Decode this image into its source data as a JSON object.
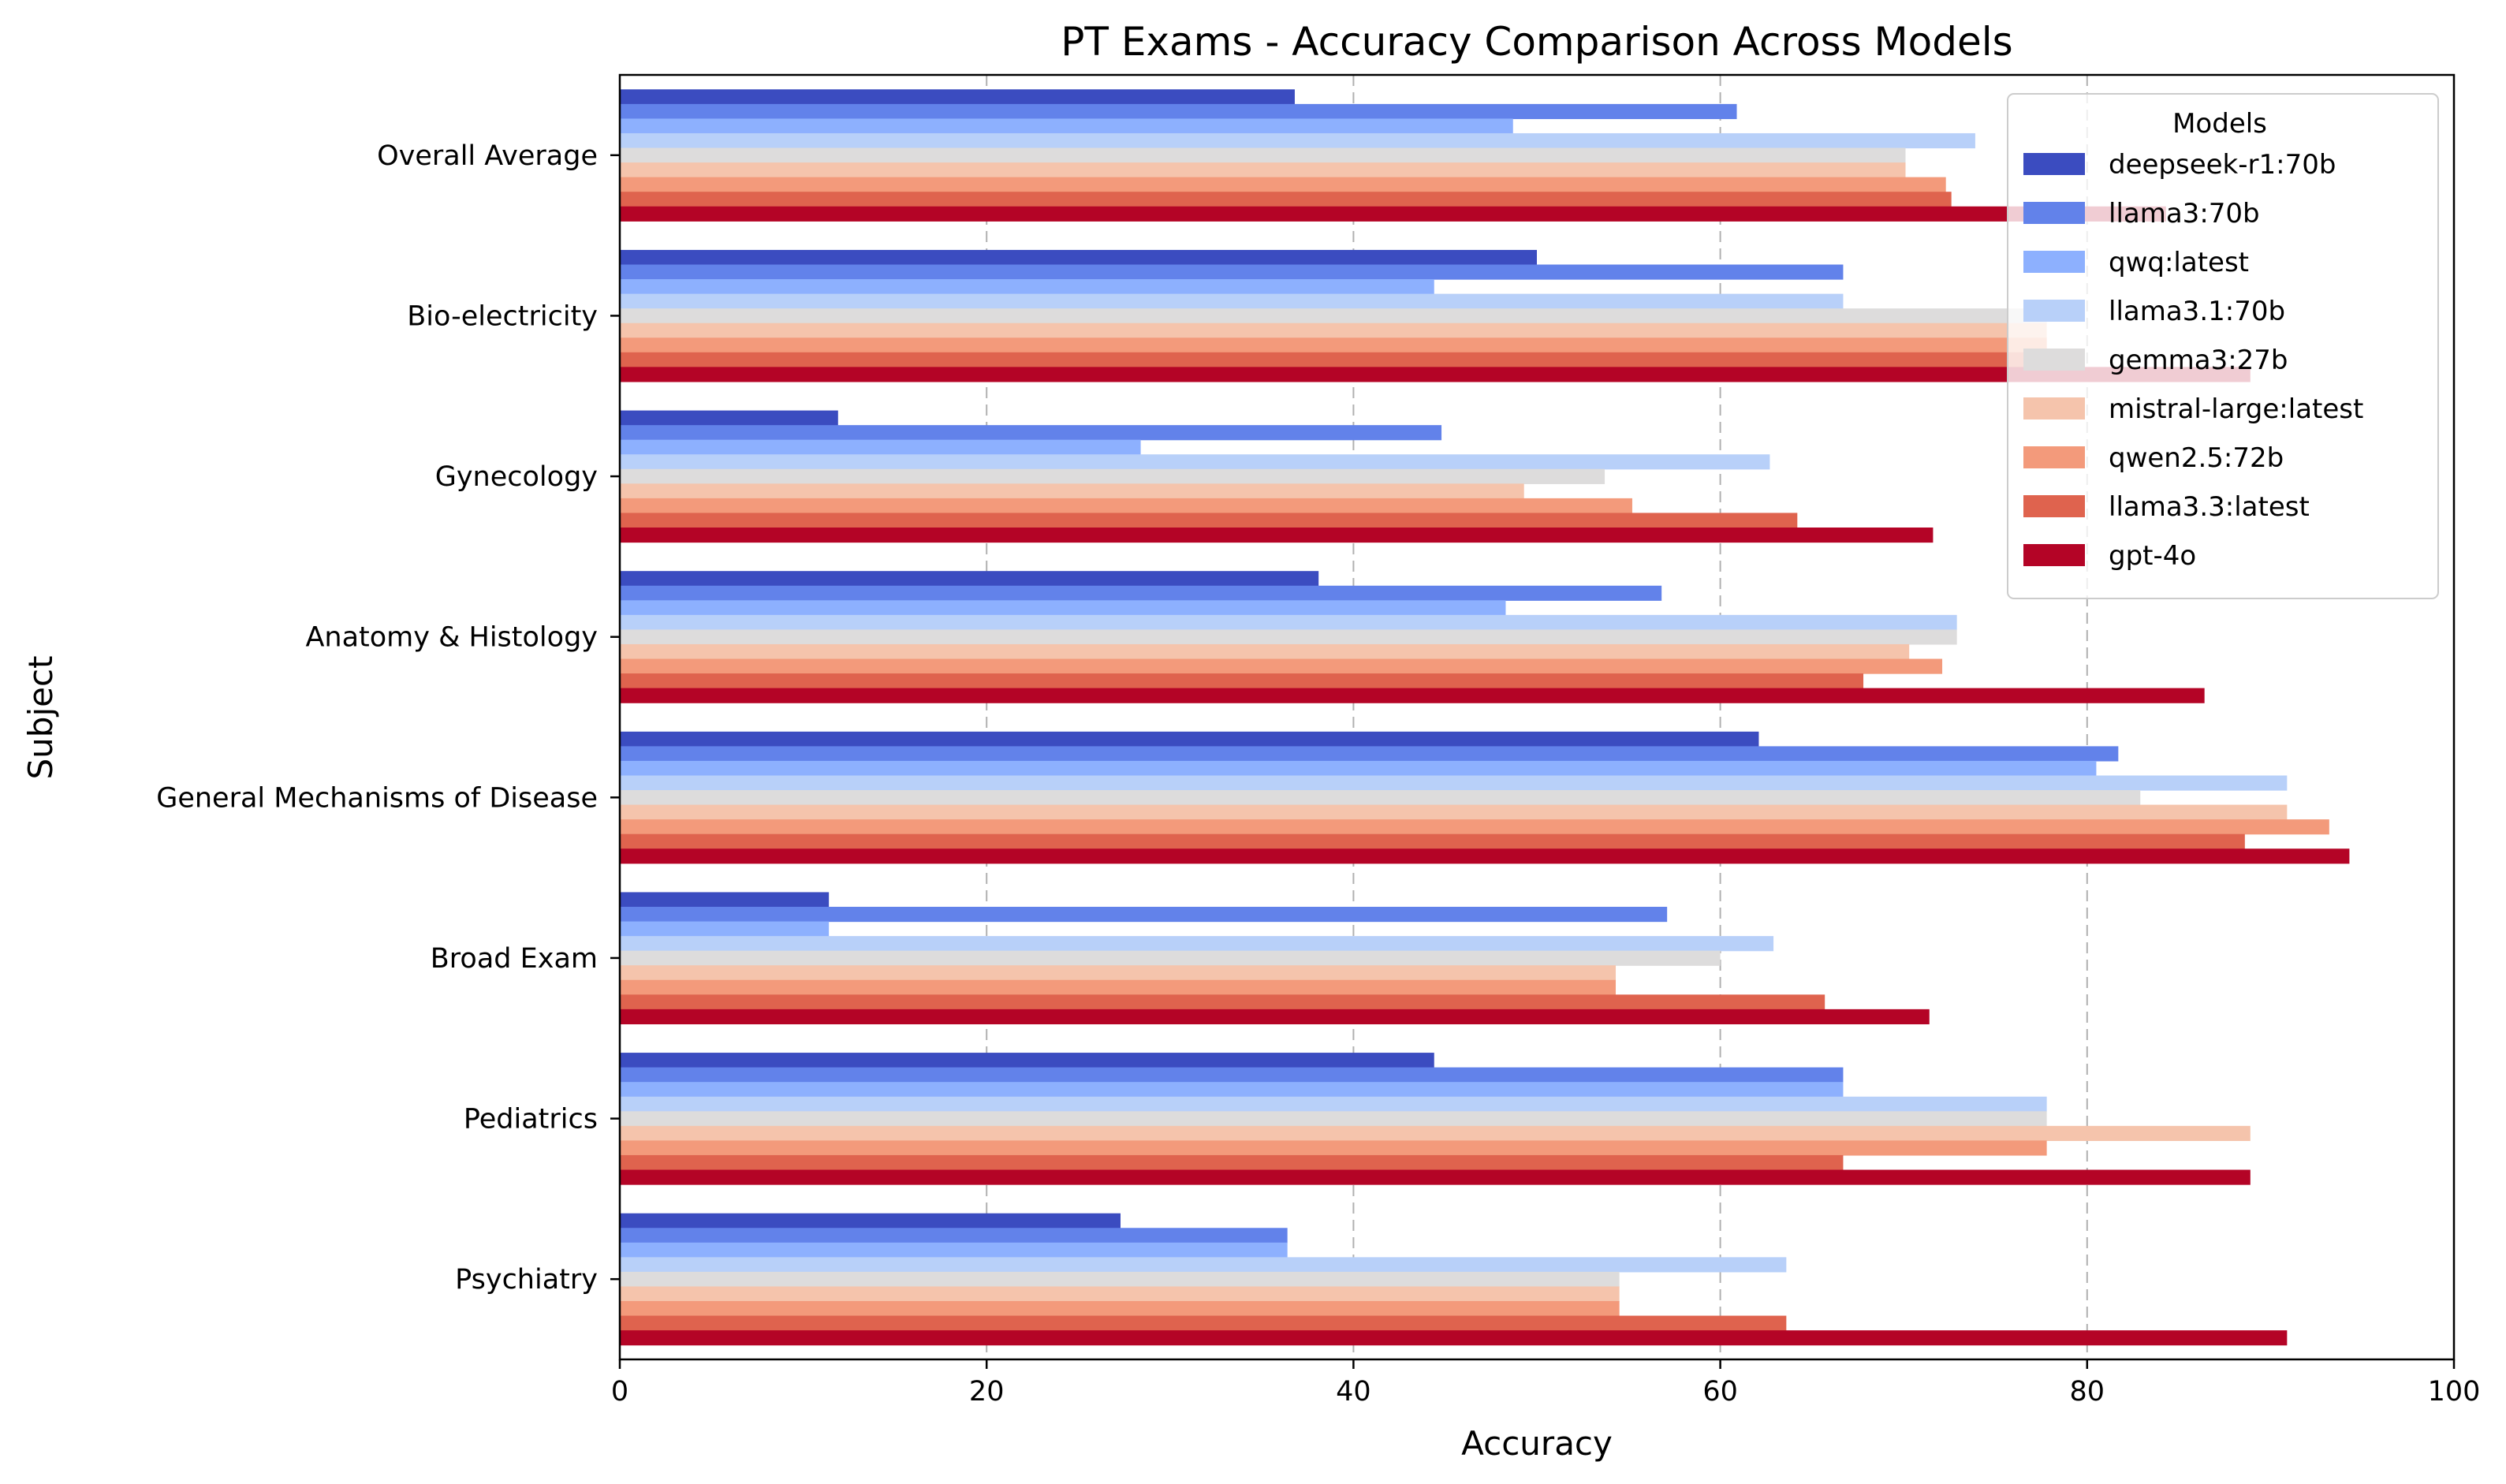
{
  "chart_data": {
    "type": "bar",
    "orientation": "horizontal",
    "title": "PT Exams - Accuracy Comparison Across Models",
    "xlabel": "Accuracy",
    "ylabel": "Subject",
    "xlim": [
      0,
      100
    ],
    "xticks": [
      "0",
      "20",
      "40",
      "60",
      "80",
      "100"
    ],
    "grid": "vertical dashed",
    "legend_placement": "top-right",
    "legend_title": "Models",
    "categories": [
      "Overall Average",
      "Bio-electricity",
      "Gynecology",
      "Anatomy & Histology",
      "General Mechanisms of Disease",
      "Broad Exam",
      "Pediatrics",
      "Psychiatry"
    ],
    "series": [
      {
        "name": "deepseek-r1:70b",
        "color": "#3b4cc0",
        "values": [
          36.8,
          50.0,
          11.9,
          38.1,
          62.1,
          11.4,
          44.4,
          27.3
        ]
      },
      {
        "name": "llama3:70b",
        "color": "#6282ea",
        "values": [
          60.9,
          66.7,
          44.8,
          56.8,
          81.7,
          57.1,
          66.7,
          36.4
        ]
      },
      {
        "name": "qwq:latest",
        "color": "#8db0fe",
        "values": [
          48.7,
          44.4,
          28.4,
          48.3,
          80.5,
          11.4,
          66.7,
          36.4
        ]
      },
      {
        "name": "llama3.1:70b",
        "color": "#b8d0f9",
        "values": [
          73.9,
          66.7,
          62.7,
          72.9,
          90.9,
          62.9,
          77.8,
          63.6
        ]
      },
      {
        "name": "gemma3:27b",
        "color": "#dddcdc",
        "values": [
          70.1,
          77.8,
          53.7,
          72.9,
          82.9,
          60.0,
          77.8,
          54.5
        ]
      },
      {
        "name": "mistral-large:latest",
        "color": "#f5c4ac",
        "values": [
          70.1,
          77.8,
          49.3,
          70.3,
          90.9,
          54.3,
          88.9,
          54.5
        ]
      },
      {
        "name": "qwen2.5:72b",
        "color": "#f39a7b",
        "values": [
          72.3,
          77.8,
          55.2,
          72.1,
          93.2,
          54.3,
          77.8,
          54.5
        ]
      },
      {
        "name": "llama3.3:latest",
        "color": "#df634e",
        "values": [
          72.6,
          77.8,
          64.2,
          67.8,
          88.6,
          65.7,
          66.7,
          63.6
        ]
      },
      {
        "name": "gpt-4o",
        "color": "#b40426",
        "values": [
          84.3,
          88.9,
          71.6,
          86.4,
          94.3,
          71.4,
          88.9,
          90.9
        ]
      }
    ]
  }
}
